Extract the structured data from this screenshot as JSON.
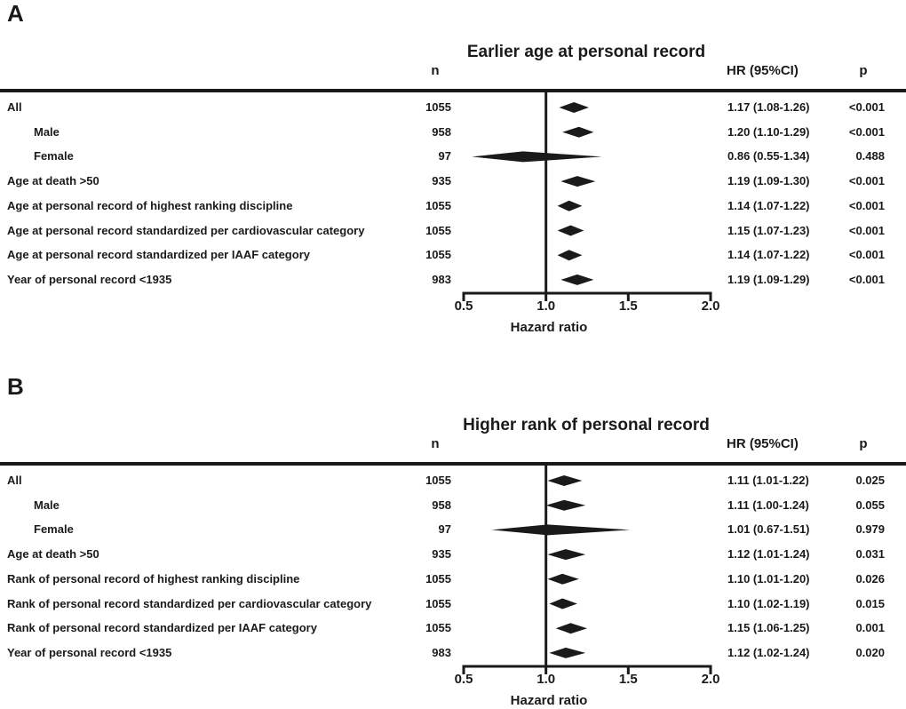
{
  "figure": {
    "ink": "#1a1a1a",
    "background": "#ffffff"
  },
  "chart_data": [
    {
      "type": "forest",
      "panel_label": "A",
      "title": "Earlier age at personal record",
      "columns": {
        "n": "n",
        "hr": "HR (95%CI)",
        "p": "p"
      },
      "xlabel": "Hazard ratio",
      "xlim": [
        0.5,
        2.0
      ],
      "xticks": [
        "0.5",
        "1.0",
        "1.5",
        "2.0"
      ],
      "reference_line": 1.0,
      "rows": [
        {
          "label": "All",
          "indent": false,
          "n": "1055",
          "hr": 1.17,
          "ci": [
            1.08,
            1.26
          ],
          "hr_text": "1.17 (1.08-1.26)",
          "p": "<0.001"
        },
        {
          "label": "Male",
          "indent": true,
          "n": "958",
          "hr": 1.2,
          "ci": [
            1.1,
            1.29
          ],
          "hr_text": "1.20 (1.10-1.29)",
          "p": "<0.001"
        },
        {
          "label": "Female",
          "indent": true,
          "n": "97",
          "hr": 0.86,
          "ci": [
            0.55,
            1.34
          ],
          "hr_text": "0.86 (0.55-1.34)",
          "p": "0.488"
        },
        {
          "label": "Age at death >50",
          "indent": false,
          "n": "935",
          "hr": 1.19,
          "ci": [
            1.09,
            1.3
          ],
          "hr_text": "1.19 (1.09-1.30)",
          "p": "<0.001"
        },
        {
          "label": "Age at personal record of highest ranking discipline",
          "indent": false,
          "n": "1055",
          "hr": 1.14,
          "ci": [
            1.07,
            1.22
          ],
          "hr_text": "1.14 (1.07-1.22)",
          "p": "<0.001"
        },
        {
          "label": "Age at personal record standardized per cardiovascular category",
          "indent": false,
          "n": "1055",
          "hr": 1.15,
          "ci": [
            1.07,
            1.23
          ],
          "hr_text": "1.15 (1.07-1.23)",
          "p": "<0.001"
        },
        {
          "label": "Age at personal record standardized per IAAF category",
          "indent": false,
          "n": "1055",
          "hr": 1.14,
          "ci": [
            1.07,
            1.22
          ],
          "hr_text": "1.14 (1.07-1.22)",
          "p": "<0.001"
        },
        {
          "label": "Year of personal record <1935",
          "indent": false,
          "n": "983",
          "hr": 1.19,
          "ci": [
            1.09,
            1.29
          ],
          "hr_text": "1.19 (1.09-1.29)",
          "p": "<0.001"
        }
      ]
    },
    {
      "type": "forest",
      "panel_label": "B",
      "title": "Higher rank of personal record",
      "columns": {
        "n": "n",
        "hr": "HR (95%CI)",
        "p": "p"
      },
      "xlabel": "Hazard ratio",
      "xlim": [
        0.5,
        2.0
      ],
      "xticks": [
        "0.5",
        "1.0",
        "1.5",
        "2.0"
      ],
      "reference_line": 1.0,
      "rows": [
        {
          "label": "All",
          "indent": false,
          "n": "1055",
          "hr": 1.11,
          "ci": [
            1.01,
            1.22
          ],
          "hr_text": "1.11 (1.01-1.22)",
          "p": "0.025"
        },
        {
          "label": "Male",
          "indent": true,
          "n": "958",
          "hr": 1.11,
          "ci": [
            1.0,
            1.24
          ],
          "hr_text": "1.11 (1.00-1.24)",
          "p": "0.055"
        },
        {
          "label": "Female",
          "indent": true,
          "n": "97",
          "hr": 1.01,
          "ci": [
            0.67,
            1.51
          ],
          "hr_text": "1.01 (0.67-1.51)",
          "p": "0.979"
        },
        {
          "label": "Age at death >50",
          "indent": false,
          "n": "935",
          "hr": 1.12,
          "ci": [
            1.01,
            1.24
          ],
          "hr_text": "1.12 (1.01-1.24)",
          "p": "0.031"
        },
        {
          "label": "Rank of personal record of highest ranking discipline",
          "indent": false,
          "n": "1055",
          "hr": 1.1,
          "ci": [
            1.01,
            1.2
          ],
          "hr_text": "1.10 (1.01-1.20)",
          "p": "0.026"
        },
        {
          "label": "Rank of personal record standardized per cardiovascular category",
          "indent": false,
          "n": "1055",
          "hr": 1.1,
          "ci": [
            1.02,
            1.19
          ],
          "hr_text": "1.10 (1.02-1.19)",
          "p": "0.015"
        },
        {
          "label": "Rank of personal record standardized per IAAF category",
          "indent": false,
          "n": "1055",
          "hr": 1.15,
          "ci": [
            1.06,
            1.25
          ],
          "hr_text": "1.15 (1.06-1.25)",
          "p": "0.001"
        },
        {
          "label": "Year of personal record <1935",
          "indent": false,
          "n": "983",
          "hr": 1.12,
          "ci": [
            1.02,
            1.24
          ],
          "hr_text": "1.12 (1.02-1.24)",
          "p": "0.020"
        }
      ]
    }
  ]
}
